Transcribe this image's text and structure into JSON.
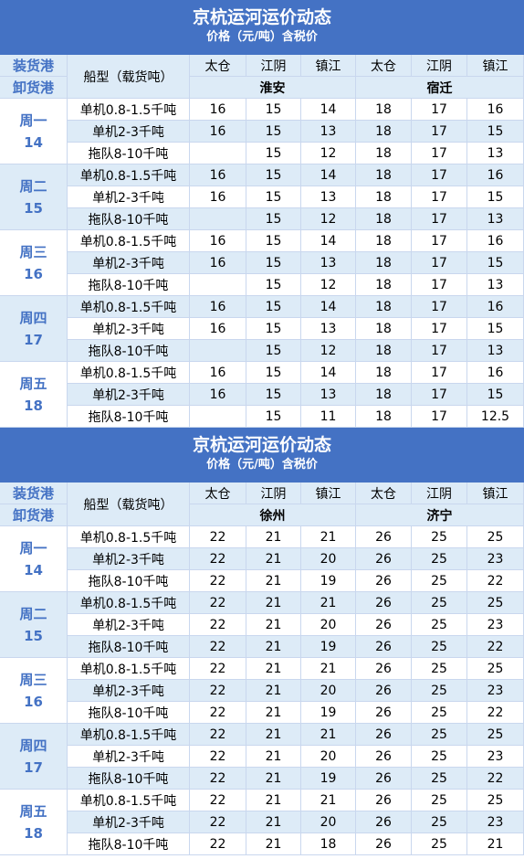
{
  "tables": [
    {
      "title": "京杭运河运价动态",
      "subtitle": "价格（元/吨）含税价",
      "header": {
        "loading": "装货港",
        "unloading": "卸货港",
        "ship_type": "船型（载货吨）",
        "ports": [
          "太仓",
          "江阴",
          "镇江",
          "太仓",
          "江阴",
          "镇江"
        ],
        "destinations": [
          "淮安",
          "宿迁"
        ]
      },
      "groups": [
        {
          "day": "周一",
          "date": "14",
          "rows": [
            {
              "type": "单机0.8-1.5千吨",
              "prices": [
                16,
                15,
                14,
                18,
                17,
                16
              ]
            },
            {
              "type": "单机2-3千吨",
              "prices": [
                16,
                15,
                13,
                18,
                17,
                15
              ]
            },
            {
              "type": "拖队8-10千吨",
              "prices": [
                null,
                15,
                12,
                18,
                17,
                13
              ]
            }
          ]
        },
        {
          "day": "周二",
          "date": "15",
          "rows": [
            {
              "type": "单机0.8-1.5千吨",
              "prices": [
                16,
                15,
                14,
                18,
                17,
                16
              ]
            },
            {
              "type": "单机2-3千吨",
              "prices": [
                16,
                15,
                13,
                18,
                17,
                15
              ]
            },
            {
              "type": "拖队8-10千吨",
              "prices": [
                null,
                15,
                12,
                18,
                17,
                13
              ]
            }
          ]
        },
        {
          "day": "周三",
          "date": "16",
          "rows": [
            {
              "type": "单机0.8-1.5千吨",
              "prices": [
                16,
                15,
                14,
                18,
                17,
                16
              ]
            },
            {
              "type": "单机2-3千吨",
              "prices": [
                16,
                15,
                13,
                18,
                17,
                15
              ]
            },
            {
              "type": "拖队8-10千吨",
              "prices": [
                null,
                15,
                12,
                18,
                17,
                13
              ]
            }
          ]
        },
        {
          "day": "周四",
          "date": "17",
          "rows": [
            {
              "type": "单机0.8-1.5千吨",
              "prices": [
                16,
                15,
                14,
                18,
                17,
                16
              ]
            },
            {
              "type": "单机2-3千吨",
              "prices": [
                16,
                15,
                13,
                18,
                17,
                15
              ]
            },
            {
              "type": "拖队8-10千吨",
              "prices": [
                null,
                15,
                12,
                18,
                17,
                13
              ]
            }
          ]
        },
        {
          "day": "周五",
          "date": "18",
          "rows": [
            {
              "type": "单机0.8-1.5千吨",
              "prices": [
                16,
                15,
                14,
                18,
                17,
                16
              ]
            },
            {
              "type": "单机2-3千吨",
              "prices": [
                16,
                15,
                13,
                18,
                17,
                15
              ]
            },
            {
              "type": "拖队8-10千吨",
              "prices": [
                null,
                15,
                11,
                18,
                17,
                12.5
              ]
            }
          ]
        }
      ]
    },
    {
      "title": "京杭运河运价动态",
      "subtitle": "价格（元/吨）含税价",
      "header": {
        "loading": "装货港",
        "unloading": "卸货港",
        "ship_type": "船型（载货吨）",
        "ports": [
          "太仓",
          "江阴",
          "镇江",
          "太仓",
          "江阴",
          "镇江"
        ],
        "destinations": [
          "徐州",
          "济宁"
        ]
      },
      "groups": [
        {
          "day": "周一",
          "date": "14",
          "rows": [
            {
              "type": "单机0.8-1.5千吨",
              "prices": [
                22,
                21,
                21,
                26,
                25,
                25
              ]
            },
            {
              "type": "单机2-3千吨",
              "prices": [
                22,
                21,
                20,
                26,
                25,
                23
              ]
            },
            {
              "type": "拖队8-10千吨",
              "prices": [
                22,
                21,
                19,
                26,
                25,
                22
              ]
            }
          ]
        },
        {
          "day": "周二",
          "date": "15",
          "rows": [
            {
              "type": "单机0.8-1.5千吨",
              "prices": [
                22,
                21,
                21,
                26,
                25,
                25
              ]
            },
            {
              "type": "单机2-3千吨",
              "prices": [
                22,
                21,
                20,
                26,
                25,
                23
              ]
            },
            {
              "type": "拖队8-10千吨",
              "prices": [
                22,
                21,
                19,
                26,
                25,
                22
              ]
            }
          ]
        },
        {
          "day": "周三",
          "date": "16",
          "rows": [
            {
              "type": "单机0.8-1.5千吨",
              "prices": [
                22,
                21,
                21,
                26,
                25,
                25
              ]
            },
            {
              "type": "单机2-3千吨",
              "prices": [
                22,
                21,
                20,
                26,
                25,
                23
              ]
            },
            {
              "type": "拖队8-10千吨",
              "prices": [
                22,
                21,
                19,
                26,
                25,
                22
              ]
            }
          ]
        },
        {
          "day": "周四",
          "date": "17",
          "rows": [
            {
              "type": "单机0.8-1.5千吨",
              "prices": [
                22,
                21,
                21,
                26,
                25,
                25
              ]
            },
            {
              "type": "单机2-3千吨",
              "prices": [
                22,
                21,
                20,
                26,
                25,
                23
              ]
            },
            {
              "type": "拖队8-10千吨",
              "prices": [
                22,
                21,
                19,
                26,
                25,
                22
              ]
            }
          ]
        },
        {
          "day": "周五",
          "date": "18",
          "rows": [
            {
              "type": "单机0.8-1.5千吨",
              "prices": [
                22,
                21,
                21,
                26,
                25,
                25
              ]
            },
            {
              "type": "单机2-3千吨",
              "prices": [
                22,
                21,
                20,
                26,
                25,
                23
              ]
            },
            {
              "type": "拖队8-10千吨",
              "prices": [
                22,
                21,
                18,
                26,
                25,
                21
              ]
            }
          ]
        }
      ]
    }
  ]
}
